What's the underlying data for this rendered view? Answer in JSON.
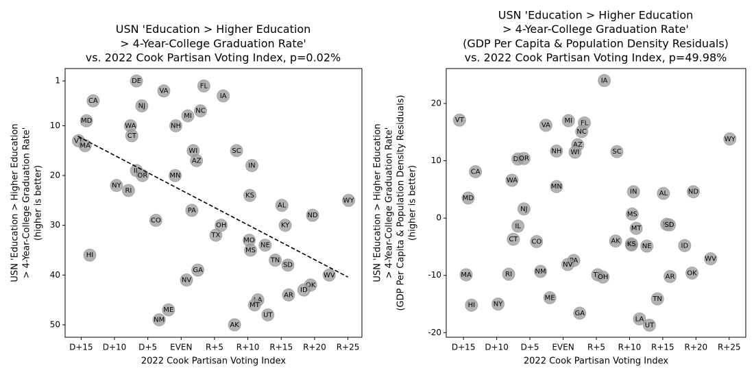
{
  "chart_data": [
    {
      "type": "scatter",
      "title": [
        "USN 'Education > Higher Education",
        "> 4-Year-College Graduation Rate'",
        "vs. 2022 Cook Partisan Voting Index, p=0.02%"
      ],
      "xlabel": "2022 Cook Partisan Voting Index",
      "ylabel": [
        "USN 'Education > Higher Education",
        "> 4-Year-College Graduation Rate'",
        "(higher is better)"
      ],
      "labels": [
        "DE",
        "VA",
        "FL",
        "CA",
        "NJ",
        "IA",
        "MI",
        "NC",
        "MD",
        "WA",
        "NH",
        "CT",
        "VT",
        "MA",
        "WI",
        "SC",
        "AZ",
        "IN",
        "IL",
        "OR",
        "MN",
        "NY",
        "RI",
        "KS",
        "WY",
        "AL",
        "PA",
        "ND",
        "CO",
        "OH",
        "KY",
        "TX",
        "MO",
        "NE",
        "MS",
        "HI",
        "TN",
        "SD",
        "GA",
        "WV",
        "NV",
        "OK",
        "ID",
        "AR",
        "LA",
        "MT",
        "ME",
        "UT",
        "NM",
        "AK"
      ],
      "x": [
        -6.7,
        -2.6,
        3.4,
        -13.2,
        -5.9,
        6.3,
        1.0,
        2.9,
        -14.2,
        -7.6,
        -0.8,
        -7.4,
        -15.4,
        -14.4,
        1.8,
        8.3,
        2.3,
        10.6,
        -6.7,
        -5.8,
        -0.9,
        -9.7,
        -7.9,
        10.3,
        25.1,
        15.1,
        1.6,
        19.7,
        -3.8,
        6.0,
        15.6,
        5.2,
        10.2,
        12.6,
        10.4,
        -13.7,
        14.1,
        16.0,
        2.5,
        22.2,
        0.8,
        19.4,
        18.4,
        16.1,
        11.5,
        11.0,
        -1.9,
        13.0,
        -3.3,
        8.0
      ],
      "y": [
        1,
        3,
        2,
        5,
        6,
        4,
        8,
        7,
        9,
        10,
        10,
        12,
        13,
        14,
        15,
        15,
        17,
        18,
        19,
        20,
        20,
        22,
        23,
        24,
        25,
        26,
        27,
        28,
        29,
        30,
        30,
        32,
        33,
        34,
        35,
        36,
        37,
        38,
        39,
        40,
        41,
        42,
        43,
        44,
        45,
        46,
        47,
        48,
        49,
        50
      ],
      "trendline": {
        "x": [
          -15.5,
          25
        ],
        "y": [
          12.1,
          40.4
        ],
        "color": "#000000"
      },
      "color": "#a0a0a0",
      "xlim": [
        -17.4,
        27.1
      ],
      "ylim": [
        52.5,
        -1.5
      ],
      "xticks": [
        {
          "value": -15,
          "label": "D+15"
        },
        {
          "value": -10,
          "label": "D+10"
        },
        {
          "value": -5,
          "label": "D+5"
        },
        {
          "value": 0,
          "label": "EVEN"
        },
        {
          "value": 5,
          "label": "R+5"
        },
        {
          "value": 10,
          "label": "R+10"
        },
        {
          "value": 15,
          "label": "R+15"
        },
        {
          "value": 20,
          "label": "R+20"
        },
        {
          "value": 25,
          "label": "R+25"
        }
      ],
      "yticks": [
        1,
        10,
        20,
        30,
        40,
        50
      ]
    },
    {
      "type": "scatter",
      "title": [
        "USN 'Education > Higher Education",
        "> 4-Year-College Graduation Rate'",
        "(GDP Per Capita & Population Density Residuals)",
        "vs. 2022 Cook Partisan Voting Index, p=49.98%"
      ],
      "xlabel": "2022 Cook Partisan Voting Index",
      "ylabel": [
        "USN 'Education > Higher Education",
        "> 4-Year-College Graduation Rate'",
        "(GDP Per Capita & Population Density Residuals)",
        "(higher is better)"
      ],
      "labels": [
        "IA",
        "VT",
        "WY",
        "VA",
        "FL",
        "MI",
        "NC",
        "AZ",
        "NH",
        "WI",
        "SC",
        "DE",
        "OR",
        "CA",
        "WA",
        "ND",
        "IN",
        "KY",
        "SD",
        "AL",
        "MD",
        "NJ",
        "MS",
        "MN",
        "IL",
        "MT",
        "CT",
        "CO",
        "AK",
        "MO",
        "NE",
        "ID",
        "WV",
        "PA",
        "NV",
        "MA",
        "RI",
        "NM",
        "TX",
        "OH",
        "OK",
        "AR",
        "ME",
        "TN",
        "HI",
        "NY",
        "GA",
        "LA",
        "UT",
        "KS"
      ],
      "x": [
        6.2,
        -15.6,
        25.1,
        -2.6,
        3.2,
        0.8,
        2.8,
        2.2,
        -1.0,
        1.8,
        8.1,
        -6.8,
        -5.9,
        -13.2,
        -7.7,
        19.6,
        10.6,
        15.6,
        16.0,
        15.1,
        -14.3,
        -5.9,
        10.4,
        -1.0,
        -6.8,
        11.0,
        -7.5,
        -4.0,
        7.9,
        10.3,
        12.6,
        18.3,
        22.2,
        1.6,
        0.7,
        -14.6,
        -8.2,
        -3.4,
        5.2,
        6.0,
        19.4,
        16.1,
        -2.0,
        14.2,
        -13.8,
        -9.8,
        2.5,
        11.5,
        13.0,
        10.3
      ],
      "y": [
        24.0,
        17.1,
        13.8,
        16.2,
        16.6,
        17.0,
        15.1,
        12.8,
        11.7,
        11.5,
        11.6,
        10.3,
        10.4,
        8.1,
        6.6,
        4.6,
        4.6,
        -1.1,
        -1.2,
        4.3,
        3.5,
        1.6,
        0.7,
        5.5,
        -1.4,
        -1.8,
        -3.7,
        -4.1,
        -4.0,
        -4.7,
        -4.9,
        -4.8,
        -7.1,
        -7.4,
        -8.1,
        -9.9,
        -9.8,
        -9.3,
        -9.9,
        -10.3,
        -9.6,
        -10.2,
        -13.9,
        -14.1,
        -15.2,
        -15.0,
        -16.6,
        -17.6,
        -18.7,
        -4.5
      ],
      "color": "#a0a0a0",
      "xlim": [
        -17.6,
        27.5
      ],
      "ylim": [
        -20.8,
        26.1
      ],
      "xticks": [
        {
          "value": -15,
          "label": "D+15"
        },
        {
          "value": -10,
          "label": "D+10"
        },
        {
          "value": -5,
          "label": "D+5"
        },
        {
          "value": 0,
          "label": "EVEN"
        },
        {
          "value": 5,
          "label": "R+5"
        },
        {
          "value": 10,
          "label": "R+10"
        },
        {
          "value": 15,
          "label": "R+15"
        },
        {
          "value": 20,
          "label": "R+20"
        },
        {
          "value": 25,
          "label": "R+25"
        }
      ],
      "yticks": [
        -20,
        -10,
        0,
        10,
        20
      ]
    }
  ]
}
